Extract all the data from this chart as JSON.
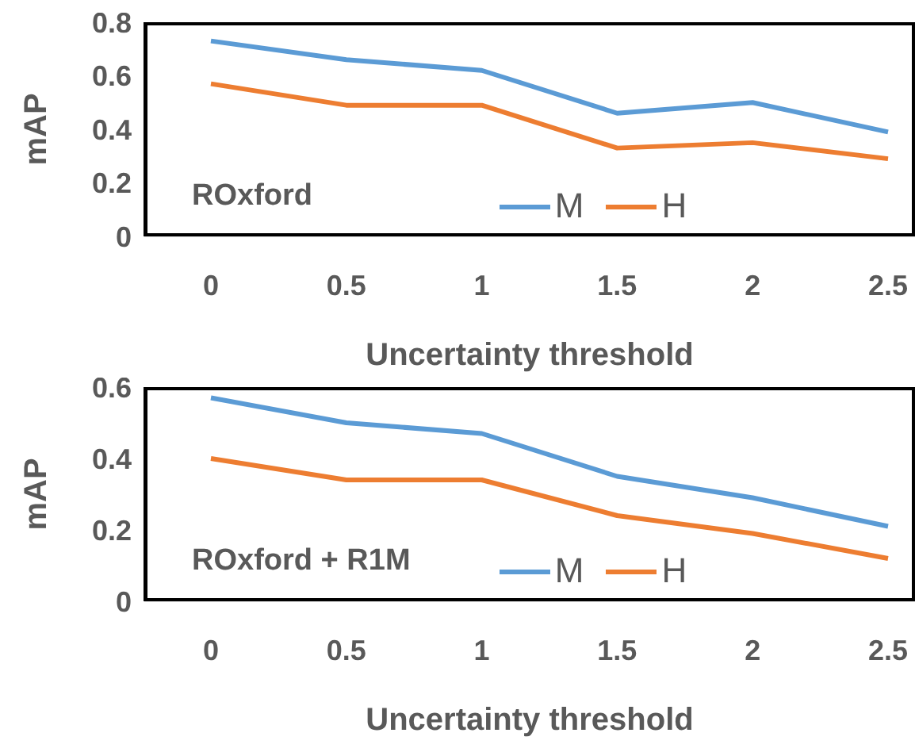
{
  "chart_data": [
    {
      "type": "line",
      "categories": [
        "0",
        "0.5",
        "1",
        "1.5",
        "2",
        "2.5"
      ],
      "xlabel": "Uncertainty threshold",
      "ylabel": "mAP",
      "annotations": [
        "ROxford"
      ],
      "ylim": [
        0,
        0.8
      ],
      "yticks": [
        0,
        0.2,
        0.4,
        0.6,
        0.8
      ],
      "grid": false,
      "legend": "bottom",
      "marker": "none",
      "series": [
        {
          "name": "M",
          "color": "#5b9bd5",
          "values": [
            0.73,
            0.66,
            0.62,
            0.46,
            0.5,
            0.39
          ]
        },
        {
          "name": "H",
          "color": "#ed7d31",
          "values": [
            0.57,
            0.49,
            0.49,
            0.33,
            0.35,
            0.29
          ]
        }
      ]
    },
    {
      "type": "line",
      "categories": [
        "0",
        "0.5",
        "1",
        "1.5",
        "2",
        "2.5"
      ],
      "xlabel": "Uncertainty threshold",
      "ylabel": "mAP",
      "annotations": [
        "ROxford + R1M"
      ],
      "ylim": [
        0,
        0.6
      ],
      "yticks": [
        0,
        0.2,
        0.4,
        0.6
      ],
      "grid": false,
      "legend": "bottom",
      "marker": "none",
      "series": [
        {
          "name": "M",
          "color": "#5b9bd5",
          "values": [
            0.57,
            0.5,
            0.47,
            0.35,
            0.29,
            0.21
          ]
        },
        {
          "name": "H",
          "color": "#ed7d31",
          "values": [
            0.4,
            0.34,
            0.34,
            0.24,
            0.19,
            0.12
          ]
        }
      ]
    }
  ]
}
